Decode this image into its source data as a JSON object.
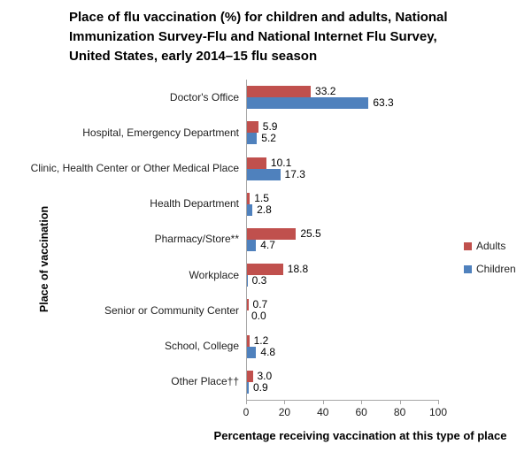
{
  "title": "Place of flu vaccination (%) for children and adults, National Immunization Survey-Flu and National Internet Flu Survey, United States, early 2014–15 flu season",
  "title_lines": [
    "Place of flu vaccination (%) for children and adults, National",
    "Immunization Survey-Flu and National Internet Flu Survey,",
    "United States, early 2014–15 flu season"
  ],
  "chart_data": {
    "type": "bar",
    "orientation": "horizontal",
    "title": "Place of flu vaccination (%) for children and adults, National Immunization Survey-Flu and National Internet Flu Survey, United States, early 2014–15 flu season",
    "categories": [
      "Doctor's Office",
      "Hospital, Emergency Department",
      "Clinic, Health Center or Other Medical Place",
      "Health Department",
      "Pharmacy/Store**",
      "Workplace",
      "Senior or Community Center",
      "School, College",
      "Other Place††"
    ],
    "series": [
      {
        "name": "Adults",
        "color": "#C0504D",
        "values": [
          33.2,
          5.9,
          10.1,
          1.5,
          25.5,
          18.8,
          0.7,
          1.2,
          3.0
        ]
      },
      {
        "name": "Children",
        "color": "#4F81BD",
        "values": [
          63.3,
          5.2,
          17.3,
          2.8,
          4.7,
          0.3,
          0.0,
          4.8,
          0.9
        ]
      }
    ],
    "xlabel": "Percentage receiving vaccination at this type of place",
    "ylabel": "Place of vaccination",
    "xlim": [
      0,
      100
    ],
    "xticks": [
      0,
      20,
      40,
      60,
      80,
      100
    ],
    "grid": false,
    "data_labels": true,
    "legend_position": "right",
    "axis_color": "#A6A6A6"
  }
}
